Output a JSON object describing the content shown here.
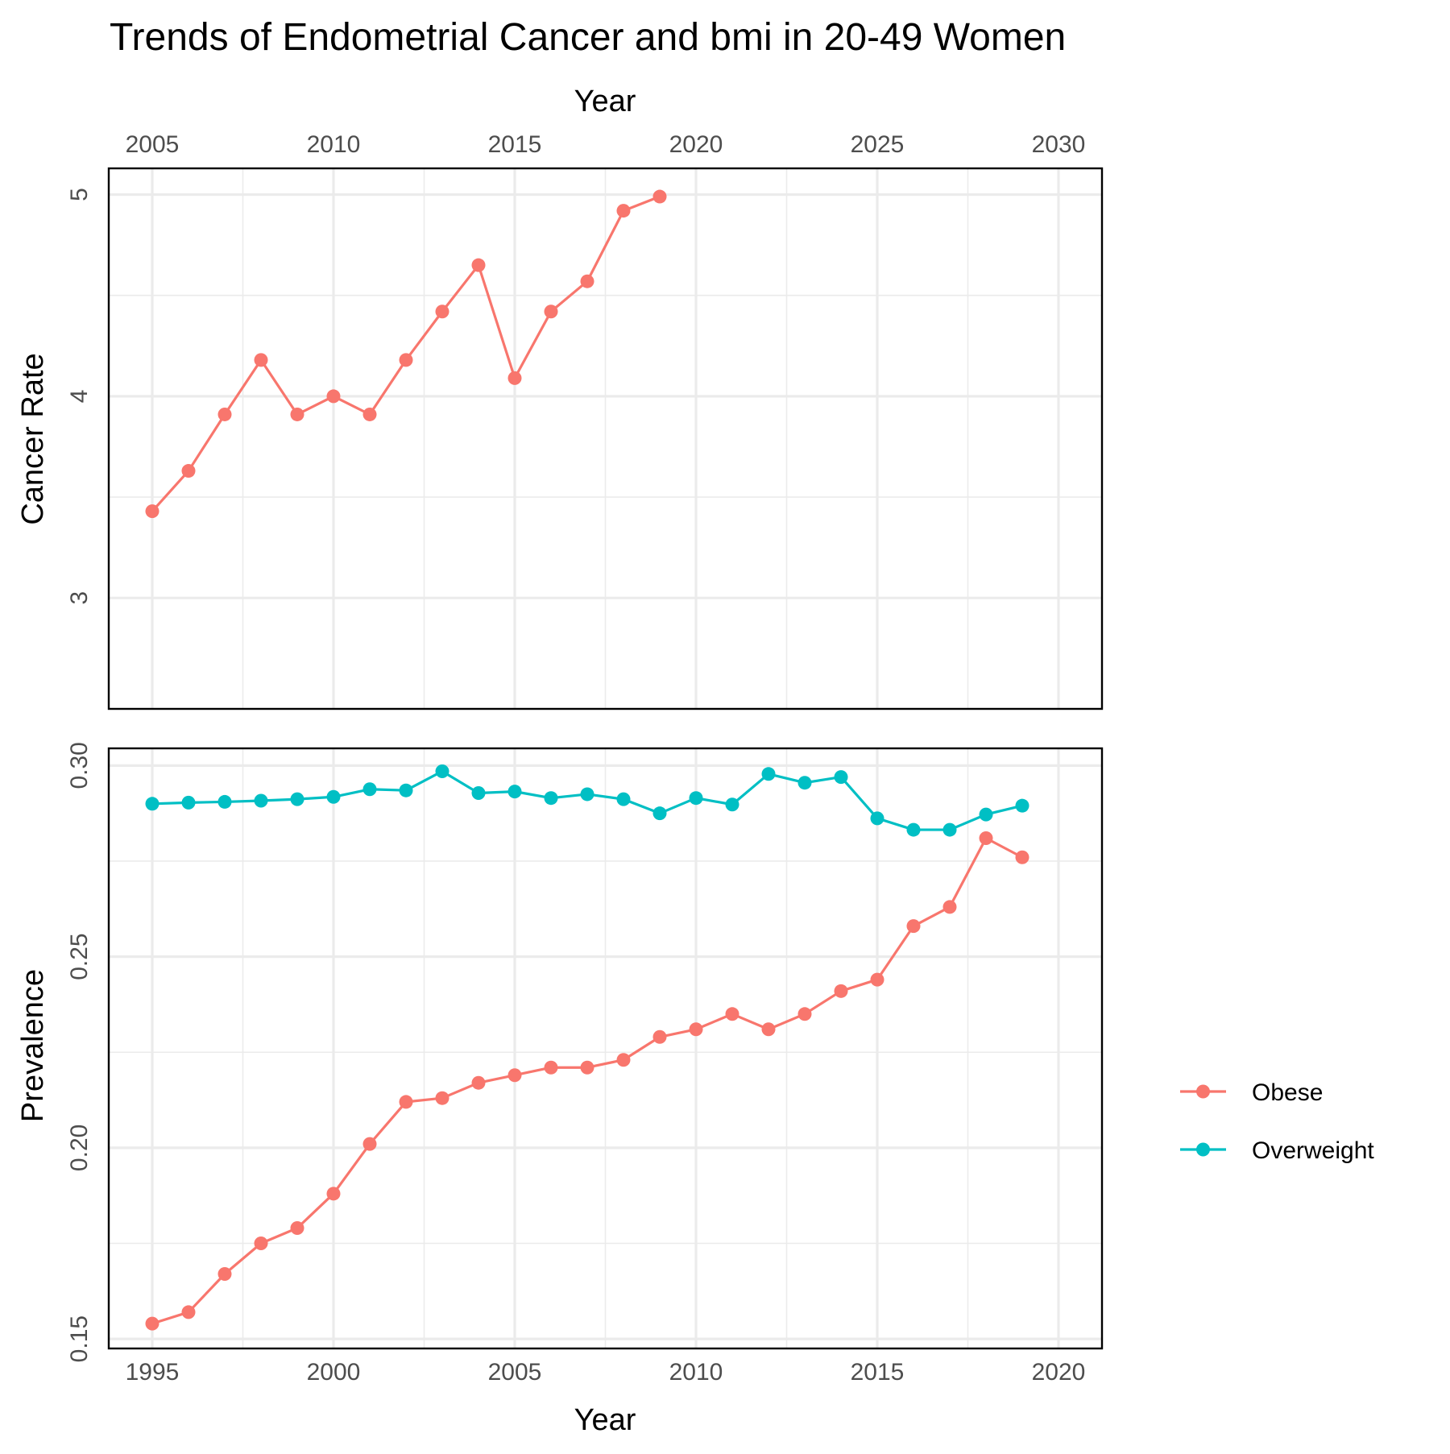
{
  "title": "Trends of Endometrial Cancer and bmi in 20-49 Women",
  "colors": {
    "obese": "#F8766D",
    "overweight": "#00BFC4"
  },
  "chart_data": [
    {
      "type": "line",
      "panel": "cancer",
      "xlabel": "Year",
      "x_axis_position": "top",
      "ylabel": "Cancer Rate",
      "xlim": [
        2003.8,
        2031.2
      ],
      "ylim": [
        2.45,
        5.13
      ],
      "x_major_ticks": [
        2005,
        2010,
        2015,
        2020,
        2025,
        2030
      ],
      "x_tick_labels": [
        "2005",
        "2010",
        "2015",
        "2020",
        "2025",
        "2030"
      ],
      "y_major_ticks": [
        3,
        4,
        5
      ],
      "y_tick_labels": [
        "3",
        "4",
        "5"
      ],
      "y_minor_ticks": [
        3.5,
        4.5
      ],
      "grid": true,
      "series": [
        {
          "color": "#F8766D",
          "x": [
            2005,
            2006,
            2007,
            2008,
            2009,
            2010,
            2011,
            2012,
            2013,
            2014,
            2015,
            2016,
            2017,
            2018,
            2019
          ],
          "y": [
            3.43,
            3.63,
            3.91,
            4.18,
            3.91,
            4.0,
            3.91,
            4.18,
            4.42,
            4.65,
            4.09,
            4.42,
            4.57,
            4.92,
            4.99
          ]
        }
      ]
    },
    {
      "type": "line",
      "panel": "bmi",
      "xlabel": "Year",
      "x_axis_position": "bottom",
      "ylabel": "Prevalence",
      "xlim": [
        1993.8,
        2021.2
      ],
      "ylim": [
        0.1475,
        0.3045
      ],
      "x_major_ticks": [
        1995,
        2000,
        2005,
        2010,
        2015,
        2020
      ],
      "x_tick_labels": [
        "1995",
        "2000",
        "2005",
        "2010",
        "2015",
        "2020"
      ],
      "y_major_ticks": [
        0.15,
        0.2,
        0.25,
        0.3
      ],
      "y_tick_labels": [
        "0.15",
        "0.20",
        "0.25",
        "0.30"
      ],
      "y_minor_ticks": [
        0.175,
        0.225,
        0.275
      ],
      "grid": true,
      "legend_position": "right",
      "series": [
        {
          "name": "Obese",
          "color": "#F8766D",
          "x": [
            1995,
            1996,
            1997,
            1998,
            1999,
            2000,
            2001,
            2002,
            2003,
            2004,
            2005,
            2006,
            2007,
            2008,
            2009,
            2010,
            2011,
            2012,
            2013,
            2014,
            2015,
            2016,
            2017,
            2018,
            2019
          ],
          "y": [
            0.154,
            0.157,
            0.167,
            0.175,
            0.179,
            0.188,
            0.201,
            0.212,
            0.213,
            0.217,
            0.219,
            0.221,
            0.221,
            0.223,
            0.229,
            0.231,
            0.235,
            0.231,
            0.235,
            0.241,
            0.244,
            0.258,
            0.263,
            0.281,
            0.276
          ]
        },
        {
          "name": "Overweight",
          "color": "#00BFC4",
          "x": [
            1995,
            1996,
            1997,
            1998,
            1999,
            2000,
            2001,
            2002,
            2003,
            2004,
            2005,
            2006,
            2007,
            2008,
            2009,
            2010,
            2011,
            2012,
            2013,
            2014,
            2015,
            2016,
            2017,
            2018,
            2019
          ],
          "y": [
            0.29,
            0.2903,
            0.2905,
            0.2908,
            0.2912,
            0.2918,
            0.2938,
            0.2935,
            0.2985,
            0.2928,
            0.2932,
            0.2915,
            0.2925,
            0.2912,
            0.2875,
            0.2915,
            0.2898,
            0.2978,
            0.2955,
            0.297,
            0.2862,
            0.2832,
            0.2832,
            0.2872,
            0.2895
          ]
        }
      ]
    }
  ]
}
